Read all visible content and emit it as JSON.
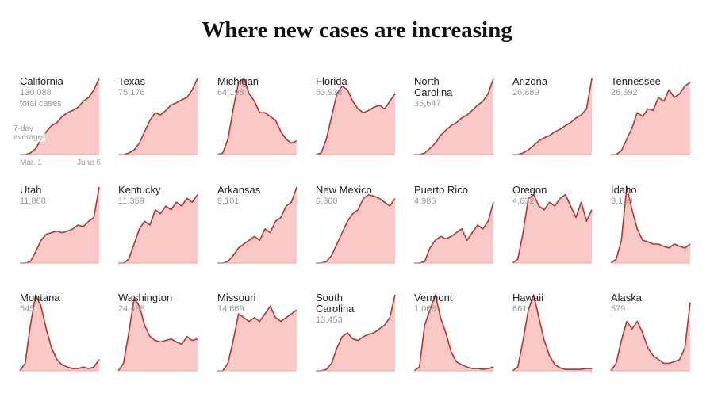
{
  "title": "Where new cases are increasing",
  "chart_data": [
    {
      "type": "area",
      "title": "California",
      "total": {
        "value": 130088,
        "label": "130,088"
      },
      "annotations": [
        "total cases",
        "7-day average"
      ],
      "x_labels": [
        "Mar. 1",
        "June 6"
      ],
      "ylim": [
        0,
        100
      ],
      "line_color": "#c0302b",
      "fill_color": "#f8c9c6",
      "values": [
        0,
        0,
        2,
        8,
        20,
        30,
        38,
        42,
        50,
        55,
        58,
        62,
        70,
        75,
        85,
        100
      ]
    },
    {
      "type": "area",
      "title": "Texas",
      "total": {
        "value": 75176,
        "label": "75,176"
      },
      "ylim": [
        0,
        100
      ],
      "line_color": "#c0302b",
      "fill_color": "#f8c9c6",
      "values": [
        0,
        0,
        2,
        6,
        15,
        30,
        45,
        55,
        52,
        58,
        65,
        68,
        72,
        75,
        85,
        100
      ]
    },
    {
      "type": "area",
      "title": "Michigan",
      "total": {
        "value": 64198,
        "label": "64,198"
      },
      "ylim": [
        0,
        100
      ],
      "line_color": "#c0302b",
      "fill_color": "#f8c9c6",
      "values": [
        0,
        2,
        20,
        60,
        95,
        100,
        80,
        70,
        55,
        55,
        50,
        45,
        30,
        20,
        15,
        18
      ]
    },
    {
      "type": "area",
      "title": "Florida",
      "total": {
        "value": 63938,
        "label": "63,938"
      },
      "ylim": [
        0,
        100
      ],
      "line_color": "#c0302b",
      "fill_color": "#f8c9c6",
      "values": [
        0,
        2,
        20,
        50,
        80,
        90,
        85,
        70,
        60,
        55,
        58,
        62,
        65,
        60,
        70,
        80
      ]
    },
    {
      "type": "area",
      "title": "North Carolina",
      "total": {
        "value": 35647,
        "label": "35,647"
      },
      "ylim": [
        0,
        100
      ],
      "line_color": "#c0302b",
      "fill_color": "#f8c9c6",
      "values": [
        0,
        0,
        2,
        8,
        15,
        25,
        32,
        38,
        42,
        48,
        52,
        58,
        65,
        70,
        80,
        100
      ]
    },
    {
      "type": "area",
      "title": "Arizona",
      "total": {
        "value": 26889,
        "label": "26,889"
      },
      "ylim": [
        0,
        100
      ],
      "line_color": "#c0302b",
      "fill_color": "#f8c9c6",
      "values": [
        0,
        0,
        2,
        6,
        12,
        18,
        22,
        25,
        30,
        33,
        38,
        42,
        48,
        52,
        60,
        100
      ]
    },
    {
      "type": "area",
      "title": "Tennessee",
      "total": {
        "value": 26692,
        "label": "26,692"
      },
      "ylim": [
        0,
        100
      ],
      "line_color": "#c0302b",
      "fill_color": "#f8c9c6",
      "values": [
        0,
        0,
        5,
        20,
        35,
        55,
        50,
        60,
        58,
        75,
        70,
        85,
        75,
        80,
        90,
        95
      ]
    },
    {
      "type": "area",
      "title": "Utah",
      "total": {
        "value": 11868,
        "label": "11,868"
      },
      "ylim": [
        0,
        100
      ],
      "line_color": "#c0302b",
      "fill_color": "#f8c9c6",
      "values": [
        0,
        0,
        2,
        15,
        30,
        38,
        40,
        42,
        40,
        42,
        45,
        50,
        48,
        55,
        60,
        100
      ]
    },
    {
      "type": "area",
      "title": "Kentucky",
      "total": {
        "value": 11359,
        "label": "11,359"
      },
      "ylim": [
        0,
        100
      ],
      "line_color": "#c0302b",
      "fill_color": "#f8c9c6",
      "values": [
        0,
        0,
        5,
        25,
        45,
        55,
        50,
        70,
        65,
        75,
        70,
        80,
        75,
        85,
        80,
        90
      ]
    },
    {
      "type": "area",
      "title": "Arkansas",
      "total": {
        "value": 9101,
        "label": "9,101"
      },
      "ylim": [
        0,
        100
      ],
      "line_color": "#c0302b",
      "fill_color": "#f8c9c6",
      "values": [
        0,
        0,
        2,
        10,
        20,
        25,
        30,
        35,
        30,
        45,
        40,
        55,
        60,
        75,
        80,
        100
      ]
    },
    {
      "type": "area",
      "title": "New Mexico",
      "total": {
        "value": 6800,
        "label": "6,800"
      },
      "ylim": [
        0,
        100
      ],
      "line_color": "#c0302b",
      "fill_color": "#f8c9c6",
      "values": [
        0,
        0,
        2,
        10,
        25,
        40,
        55,
        65,
        70,
        85,
        90,
        88,
        85,
        80,
        75,
        85
      ]
    },
    {
      "type": "area",
      "title": "Puerto Rico",
      "total": {
        "value": 4985,
        "label": "4,985"
      },
      "ylim": [
        0,
        100
      ],
      "line_color": "#c0302b",
      "fill_color": "#f8c9c6",
      "values": [
        0,
        0,
        2,
        20,
        30,
        35,
        32,
        35,
        40,
        45,
        30,
        40,
        50,
        45,
        55,
        80
      ]
    },
    {
      "type": "area",
      "title": "Oregon",
      "total": {
        "value": 4632,
        "label": "4,632"
      },
      "ylim": [
        0,
        100
      ],
      "line_color": "#c0302b",
      "fill_color": "#f8c9c6",
      "values": [
        0,
        5,
        40,
        85,
        90,
        75,
        70,
        80,
        75,
        85,
        90,
        75,
        60,
        80,
        55,
        70
      ]
    },
    {
      "type": "area",
      "title": "Idaho",
      "total": {
        "value": 3139,
        "label": "3,139"
      },
      "ylim": [
        0,
        100
      ],
      "line_color": "#c0302b",
      "fill_color": "#f8c9c6",
      "values": [
        0,
        5,
        30,
        100,
        70,
        45,
        30,
        28,
        25,
        25,
        22,
        20,
        25,
        22,
        20,
        25
      ]
    },
    {
      "type": "area",
      "title": "Montana",
      "total": 545,
      "ylim": [
        0,
        100
      ],
      "line_color": "#c0302b",
      "fill_color": "#f8c9c6",
      "values": [
        0,
        10,
        60,
        100,
        85,
        55,
        30,
        15,
        8,
        5,
        3,
        3,
        5,
        3,
        5,
        15
      ]
    },
    {
      "type": "area",
      "title": "Washington",
      "total": {
        "value": 24488,
        "label": "24,488"
      },
      "ylim": [
        0,
        100
      ],
      "line_color": "#c0302b",
      "fill_color": "#f8c9c6",
      "values": [
        0,
        10,
        50,
        95,
        85,
        60,
        45,
        40,
        38,
        40,
        42,
        38,
        35,
        45,
        40,
        42
      ]
    },
    {
      "type": "area",
      "title": "Missouri",
      "total": {
        "value": 14669,
        "label": "14,669"
      },
      "ylim": [
        0,
        100
      ],
      "line_color": "#c0302b",
      "fill_color": "#f8c9c6",
      "values": [
        0,
        0,
        10,
        40,
        75,
        70,
        65,
        70,
        65,
        75,
        85,
        70,
        65,
        70,
        75,
        80
      ]
    },
    {
      "type": "area",
      "title": "South Carolina",
      "total": {
        "value": 13453,
        "label": "13,453"
      },
      "ylim": [
        0,
        100
      ],
      "line_color": "#c0302b",
      "fill_color": "#f8c9c6",
      "values": [
        0,
        0,
        2,
        10,
        30,
        45,
        50,
        42,
        40,
        45,
        48,
        50,
        55,
        60,
        70,
        100
      ]
    },
    {
      "type": "area",
      "title": "Vermont",
      "total": {
        "value": 1063,
        "label": "1,063"
      },
      "ylim": [
        0,
        100
      ],
      "line_color": "#c0302b",
      "fill_color": "#f8c9c6",
      "values": [
        0,
        5,
        60,
        80,
        100,
        70,
        50,
        25,
        12,
        8,
        5,
        3,
        3,
        2,
        3,
        5
      ]
    },
    {
      "type": "area",
      "title": "Hawaii",
      "total": 661,
      "ylim": [
        0,
        100
      ],
      "line_color": "#c0302b",
      "fill_color": "#f8c9c6",
      "values": [
        0,
        5,
        40,
        80,
        100,
        70,
        40,
        20,
        8,
        4,
        2,
        2,
        2,
        2,
        3,
        3
      ]
    },
    {
      "type": "area",
      "title": "Alaska",
      "total": 579,
      "ylim": [
        0,
        100
      ],
      "line_color": "#c0302b",
      "fill_color": "#f8c9c6",
      "values": [
        0,
        10,
        40,
        65,
        55,
        65,
        50,
        30,
        20,
        15,
        10,
        10,
        12,
        15,
        30,
        90
      ]
    }
  ]
}
